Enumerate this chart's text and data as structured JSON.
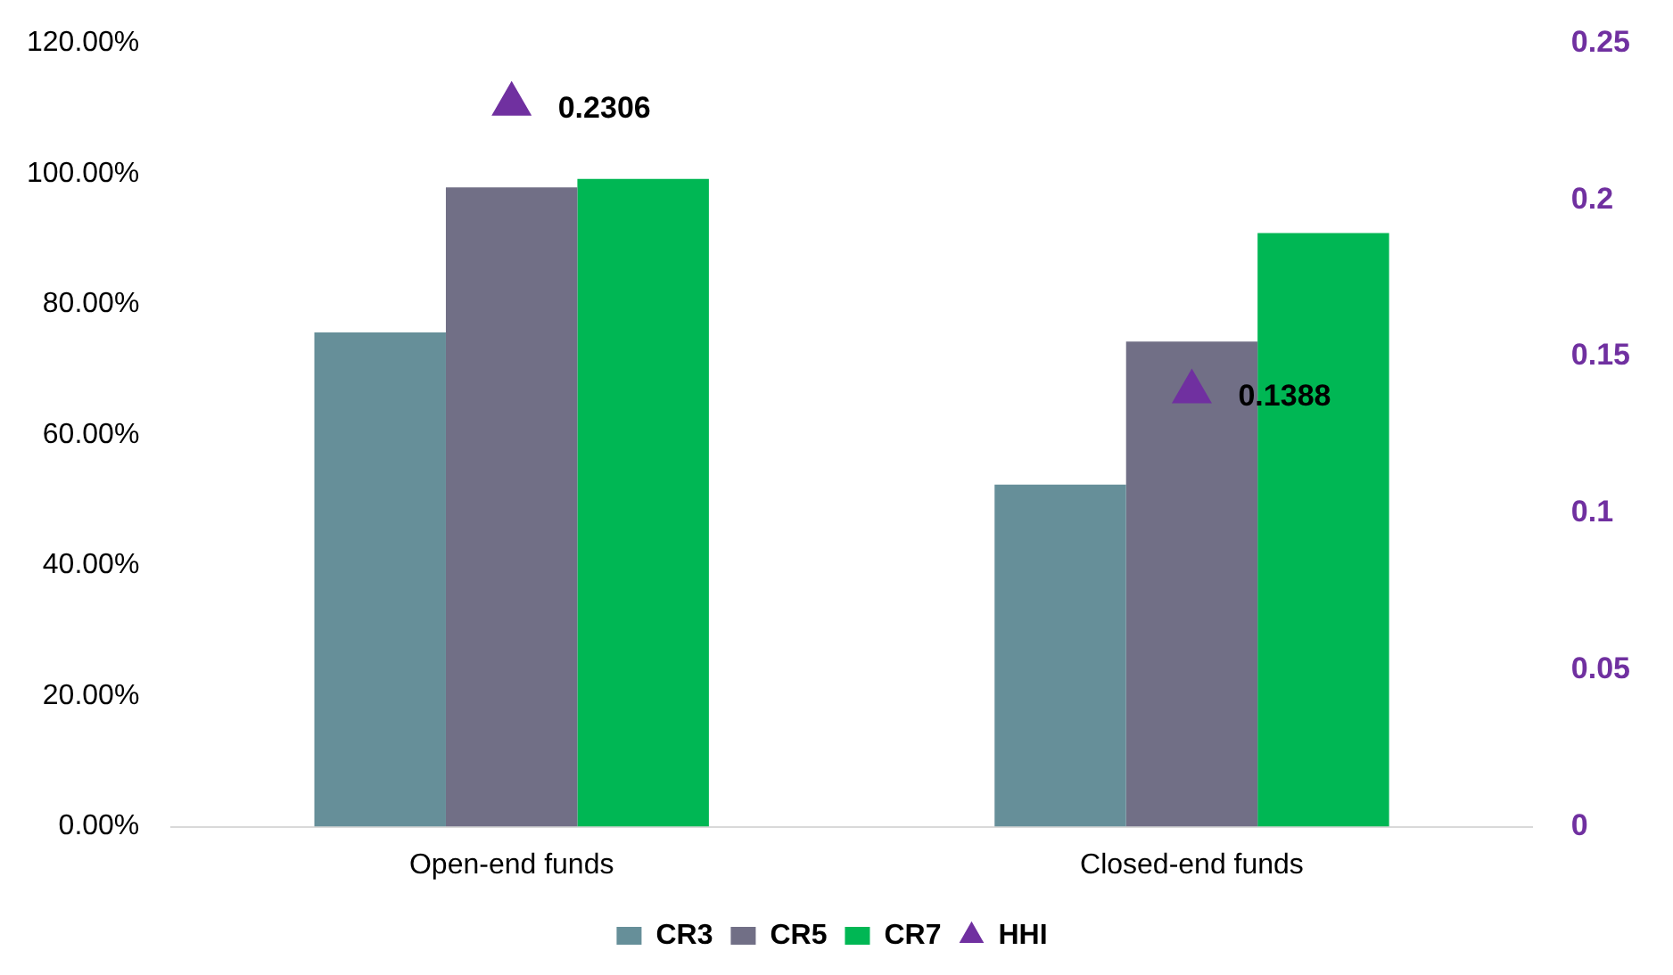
{
  "chart_data": {
    "type": "bar",
    "categories": [
      "Open-end funds",
      "Closed-end funds"
    ],
    "series": [
      {
        "name": "CR3",
        "color": "#668f99",
        "values": [
          75.7,
          52.4
        ]
      },
      {
        "name": "CR5",
        "color": "#716f86",
        "values": [
          97.9,
          74.3
        ]
      },
      {
        "name": "CR7",
        "color": "#00b754",
        "values": [
          99.2,
          90.9
        ]
      },
      {
        "name": "HHI",
        "type": "scatter",
        "axis": "y2",
        "marker": "triangle",
        "color": "#7030a0",
        "x": [
          "Open-end funds",
          "Closed-end funds"
        ],
        "values": [
          0.2306,
          0.1388
        ],
        "value_labels": [
          "0.2306",
          "0.1388"
        ]
      }
    ],
    "ylim": [
      0,
      120
    ],
    "yticks": [
      {
        "value": 0,
        "label": "0.00%"
      },
      {
        "value": 20,
        "label": "20.00%"
      },
      {
        "value": 40,
        "label": "40.00%"
      },
      {
        "value": 60,
        "label": "60.00%"
      },
      {
        "value": 80,
        "label": "80.00%"
      },
      {
        "value": 100,
        "label": "100.00%"
      },
      {
        "value": 120,
        "label": "120.00%"
      }
    ],
    "y2lim": [
      0,
      0.25
    ],
    "y2ticks": [
      0,
      0.05,
      0.1,
      0.15,
      0.2,
      0.25
    ],
    "grid": false,
    "legend": "bottom"
  }
}
